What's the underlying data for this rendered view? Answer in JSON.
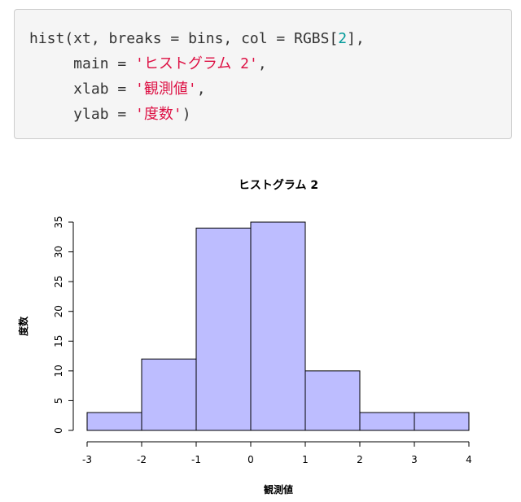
{
  "code": {
    "lines": [
      [
        {
          "t": "hist(xt, breaks = bins, col = RGBS[",
          "c": "plain"
        },
        {
          "t": "2",
          "c": "num"
        },
        {
          "t": "],",
          "c": "plain"
        }
      ],
      [
        {
          "t": "     main = ",
          "c": "plain"
        },
        {
          "t": "'ヒストグラム 2'",
          "c": "str"
        },
        {
          "t": ",",
          "c": "plain"
        }
      ],
      [
        {
          "t": "     xlab = ",
          "c": "plain"
        },
        {
          "t": "'観測値'",
          "c": "str"
        },
        {
          "t": ",",
          "c": "plain"
        }
      ],
      [
        {
          "t": "     ylab = ",
          "c": "plain"
        },
        {
          "t": "'度数'",
          "c": "str"
        },
        {
          "t": ")",
          "c": "plain"
        }
      ]
    ]
  },
  "chart_data": {
    "type": "bar",
    "title": "ヒストグラム 2",
    "xlabel": "観測値",
    "ylabel": "度数",
    "bins": [
      {
        "from": -3,
        "to": -2,
        "count": 3
      },
      {
        "from": -2,
        "to": -1,
        "count": 12
      },
      {
        "from": -1,
        "to": 0,
        "count": 34
      },
      {
        "from": 0,
        "to": 1,
        "count": 35
      },
      {
        "from": 1,
        "to": 2,
        "count": 10
      },
      {
        "from": 2,
        "to": 3,
        "count": 3
      },
      {
        "from": 3,
        "to": 4,
        "count": 3
      }
    ],
    "xlim": [
      -3,
      4
    ],
    "ylim": [
      0,
      35
    ],
    "x_ticks": [
      -3,
      -2,
      -1,
      0,
      1,
      2,
      3,
      4
    ],
    "x_tick_labels": [
      "-3",
      "-2",
      "-1",
      "0",
      "1",
      "2",
      "3",
      "4"
    ],
    "y_ticks": [
      0,
      5,
      10,
      15,
      20,
      25,
      30,
      35
    ],
    "y_tick_labels": [
      "0",
      "5",
      "10",
      "15",
      "20",
      "25",
      "30",
      "35"
    ],
    "bar_color": "#BDBDFF",
    "bar_border": "#000000",
    "grid": false
  }
}
